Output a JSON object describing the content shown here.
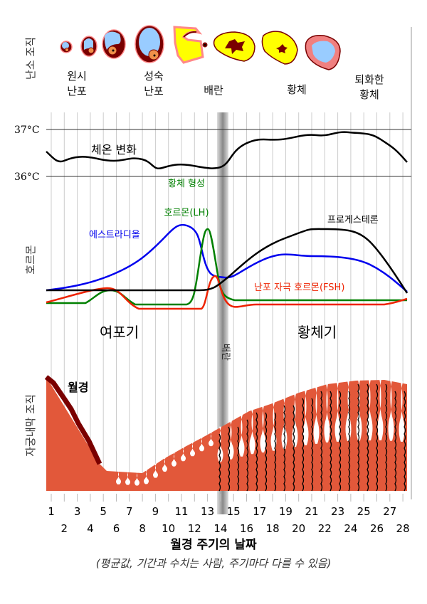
{
  "sections": {
    "ovary": "난소 조직",
    "hormones": "호르몬",
    "endometrium": "자궁내막 조직"
  },
  "ovary_stages": {
    "primordial": [
      "원시",
      "난포"
    ],
    "mature": [
      "성숙",
      "난포"
    ],
    "ovulation": "배란",
    "corpus_luteum": "황체",
    "degenerating": [
      "퇴화한",
      "황체"
    ]
  },
  "temperature": {
    "high": "37°C",
    "low": "36°C",
    "label": "체온 변화"
  },
  "hormone_labels": {
    "lh": [
      "황체 형성",
      "호르몬(LH)"
    ],
    "estradiol": "에스트라디올",
    "progesterone": "프로게스테론",
    "fsh": "난포 자극 호르몬(FSH)"
  },
  "phases": {
    "follicular": "여포기",
    "luteal": "황체기",
    "ovulation_marker": "배란",
    "menstruation": "월경"
  },
  "days": [
    1,
    2,
    3,
    4,
    5,
    6,
    7,
    8,
    9,
    10,
    11,
    12,
    13,
    14,
    15,
    16,
    17,
    18,
    19,
    20,
    21,
    22,
    23,
    24,
    25,
    26,
    27,
    28
  ],
  "x_title": "월경 주기의 날짜",
  "note": "(평균값, 기간과 수치는 사람, 주기마다 다를 수 있음)",
  "colors": {
    "estradiol": "#0000ee",
    "lh": "#008000",
    "fsh": "#ee2200",
    "progesterone": "#000000",
    "endometrium": "#e2583a",
    "menstrual": "#7a0000"
  }
}
